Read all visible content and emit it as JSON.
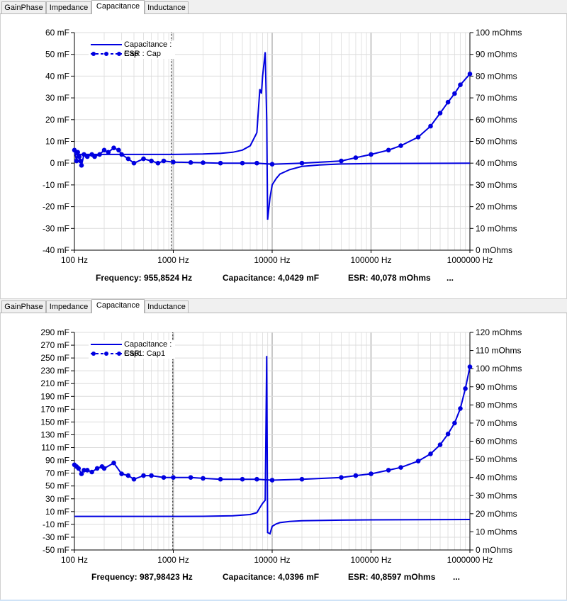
{
  "tabs": [
    "GainPhase",
    "Impedance",
    "Capacitance",
    "Inductance"
  ],
  "active_tab": "Capacitance",
  "colors": {
    "series": "#0000e0",
    "grid": "#d8d8d8",
    "cursor": "#000000"
  },
  "chart_data": [
    {
      "type": "line",
      "x_scale": "log",
      "xlim": [
        100,
        1000000
      ],
      "x_ticks": [
        "100 Hz",
        "1000 Hz",
        "10000 Hz",
        "100000 Hz",
        "1000000 Hz"
      ],
      "y_left": {
        "ylim": [
          -40,
          60
        ],
        "ticks": [
          "60 mF",
          "50 mF",
          "40 mF",
          "30 mF",
          "20 mF",
          "10 mF",
          "0 mF",
          "-10 mF",
          "-20 mF",
          "-30 mF",
          "-40 mF"
        ]
      },
      "y_right": {
        "ylim": [
          0,
          100
        ],
        "ticks": [
          "100 mOhms",
          "90 mOhms",
          "80 mOhms",
          "70 mOhms",
          "60 mOhms",
          "50 mOhms",
          "40 mOhms",
          "30 mOhms",
          "20 mOhms",
          "10 mOhms",
          "0 mOhms"
        ]
      },
      "legend": {
        "placement": "top-left",
        "entries": [
          "Capacitance : Cap",
          "ESR : Cap"
        ]
      },
      "grid": true,
      "cursor_x": 955.8524,
      "series": [
        {
          "name": "Capacitance : Cap",
          "axis": "left",
          "points": [
            [
              100,
              4
            ],
            [
              150,
              4
            ],
            [
              200,
              4
            ],
            [
              300,
              4
            ],
            [
              500,
              4
            ],
            [
              1000,
              4
            ],
            [
              2000,
              4.2
            ],
            [
              3000,
              4.5
            ],
            [
              4000,
              5
            ],
            [
              5000,
              6
            ],
            [
              6000,
              8
            ],
            [
              7000,
              14
            ],
            [
              7500,
              34
            ],
            [
              7800,
              32
            ],
            [
              8000,
              40
            ],
            [
              8500,
              51
            ],
            [
              8800,
              20
            ],
            [
              9000,
              -26
            ],
            [
              9500,
              -16
            ],
            [
              10000,
              -10
            ],
            [
              11000,
              -7
            ],
            [
              12000,
              -5
            ],
            [
              15000,
              -3
            ],
            [
              20000,
              -1.5
            ],
            [
              30000,
              -0.8
            ],
            [
              50000,
              -0.4
            ],
            [
              100000,
              -0.2
            ],
            [
              1000000,
              0
            ]
          ]
        },
        {
          "name": "ESR : Cap",
          "axis": "right",
          "marker": "circle",
          "points": [
            [
              100,
              46
            ],
            [
              105,
              41
            ],
            [
              108,
              45
            ],
            [
              112,
              43
            ],
            [
              115,
              41
            ],
            [
              118,
              39
            ],
            [
              125,
              44
            ],
            [
              135,
              43
            ],
            [
              150,
              44
            ],
            [
              160,
              43
            ],
            [
              180,
              44
            ],
            [
              200,
              46
            ],
            [
              220,
              45
            ],
            [
              250,
              47
            ],
            [
              280,
              46
            ],
            [
              300,
              44
            ],
            [
              350,
              42
            ],
            [
              400,
              40
            ],
            [
              500,
              42
            ],
            [
              600,
              41
            ],
            [
              700,
              40
            ],
            [
              800,
              41
            ],
            [
              1000,
              40.5
            ],
            [
              1500,
              40.3
            ],
            [
              2000,
              40.2
            ],
            [
              3000,
              40
            ],
            [
              5000,
              40
            ],
            [
              7000,
              40
            ],
            [
              10000,
              39.5
            ],
            [
              20000,
              40
            ],
            [
              50000,
              41
            ],
            [
              70000,
              42.5
            ],
            [
              100000,
              44
            ],
            [
              150000,
              46
            ],
            [
              200000,
              48
            ],
            [
              300000,
              52
            ],
            [
              400000,
              57
            ],
            [
              500000,
              63
            ],
            [
              600000,
              68
            ],
            [
              700000,
              72
            ],
            [
              800000,
              76
            ],
            [
              1000000,
              81
            ]
          ]
        }
      ],
      "readout": {
        "frequency": "Frequency: 955,8524 Hz",
        "capacitance": "Capacitance: 4,0429 mF",
        "esr": "ESR: 40,078 mOhms",
        "more": "..."
      }
    },
    {
      "type": "line",
      "x_scale": "log",
      "xlim": [
        100,
        1000000
      ],
      "x_ticks": [
        "100 Hz",
        "1000 Hz",
        "10000 Hz",
        "100000 Hz",
        "1000000 Hz"
      ],
      "y_left": {
        "ylim": [
          -50,
          300
        ],
        "ticks": [
          "290 mF",
          "270 mF",
          "250 mF",
          "230 mF",
          "210 mF",
          "190 mF",
          "170 mF",
          "150 mF",
          "130 mF",
          "110 mF",
          "90 mF",
          "70 mF",
          "50 mF",
          "30 mF",
          "10 mF",
          "-10 mF",
          "-30 mF",
          "-50 mF"
        ]
      },
      "y_right": {
        "ylim": [
          0,
          120
        ],
        "ticks": [
          "120 mOhms",
          "110 mOhms",
          "100 mOhms",
          "90 mOhms",
          "80 mOhms",
          "70 mOhms",
          "60 mOhms",
          "50 mOhms",
          "40 mOhms",
          "30 mOhms",
          "20 mOhms",
          "10 mOhms",
          "0 mOhms"
        ]
      },
      "legend": {
        "placement": "top-left",
        "entries": [
          "Capacitance : Cap1",
          "ESR : Cap1"
        ]
      },
      "grid": true,
      "cursor_x": 987.98423,
      "series": [
        {
          "name": "Capacitance : Cap1",
          "axis": "left",
          "points": [
            [
              100,
              4
            ],
            [
              200,
              4
            ],
            [
              500,
              4
            ],
            [
              1000,
              4
            ],
            [
              2000,
              4.2
            ],
            [
              4000,
              5
            ],
            [
              6000,
              7
            ],
            [
              7000,
              10
            ],
            [
              7500,
              18
            ],
            [
              8000,
              25
            ],
            [
              8500,
              30
            ],
            [
              8800,
              262
            ],
            [
              9000,
              -22
            ],
            [
              9500,
              -24
            ],
            [
              10000,
              -12
            ],
            [
              11000,
              -8
            ],
            [
              12000,
              -6
            ],
            [
              15000,
              -4
            ],
            [
              20000,
              -3
            ],
            [
              50000,
              -2
            ],
            [
              100000,
              -1.5
            ],
            [
              1000000,
              -1
            ]
          ]
        },
        {
          "name": "ESR : Cap1",
          "axis": "right",
          "marker": "circle",
          "points": [
            [
              100,
              47
            ],
            [
              105,
              46
            ],
            [
              110,
              45
            ],
            [
              118,
              42
            ],
            [
              125,
              44
            ],
            [
              135,
              44
            ],
            [
              150,
              43
            ],
            [
              170,
              45
            ],
            [
              190,
              46
            ],
            [
              200,
              45
            ],
            [
              250,
              48
            ],
            [
              300,
              42
            ],
            [
              350,
              41
            ],
            [
              400,
              39
            ],
            [
              500,
              41
            ],
            [
              600,
              41
            ],
            [
              800,
              40
            ],
            [
              1000,
              40
            ],
            [
              1500,
              40
            ],
            [
              2000,
              39.5
            ],
            [
              3000,
              39
            ],
            [
              5000,
              39
            ],
            [
              7000,
              39
            ],
            [
              10000,
              38.5
            ],
            [
              20000,
              39
            ],
            [
              50000,
              40
            ],
            [
              70000,
              41
            ],
            [
              100000,
              42
            ],
            [
              150000,
              44
            ],
            [
              200000,
              45.5
            ],
            [
              300000,
              49
            ],
            [
              400000,
              53
            ],
            [
              500000,
              58
            ],
            [
              600000,
              64
            ],
            [
              700000,
              70
            ],
            [
              800000,
              78
            ],
            [
              900000,
              89
            ],
            [
              1000000,
              101
            ]
          ]
        }
      ],
      "readout": {
        "frequency": "Frequency: 987,98423 Hz",
        "capacitance": "Capacitance: 4,0396 mF",
        "esr": "ESR: 40,8597 mOhms",
        "more": "..."
      }
    }
  ]
}
